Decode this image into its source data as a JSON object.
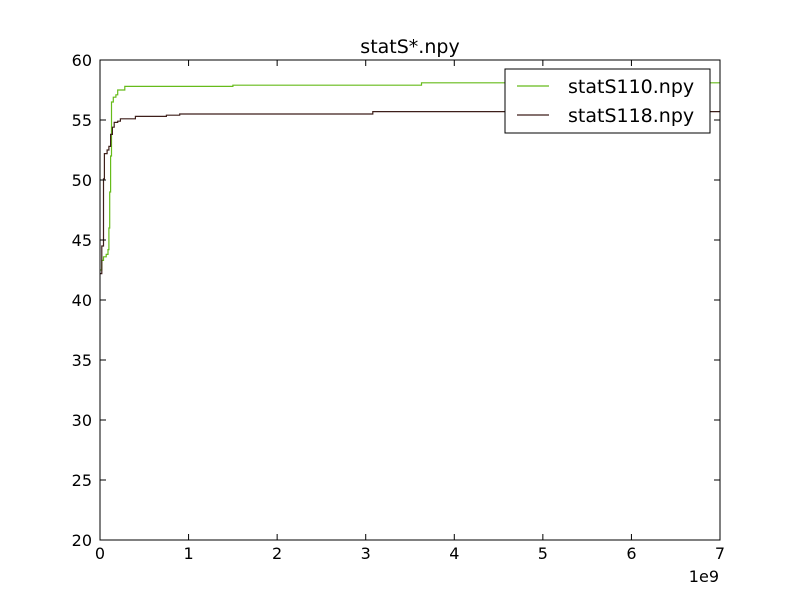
{
  "chart_data": {
    "type": "line",
    "title": "statS*.npy",
    "xlabel": "",
    "ylabel": "",
    "x_offset_label": "1e9",
    "xlim": [
      0,
      7
    ],
    "ylim": [
      20,
      60
    ],
    "xticks": [
      0,
      1,
      2,
      3,
      4,
      5,
      6,
      7
    ],
    "yticks": [
      20,
      25,
      30,
      35,
      40,
      45,
      50,
      55,
      60
    ],
    "grid": false,
    "legend_position": "top-right",
    "series": [
      {
        "name": "statS110.npy",
        "color": "#66bb1a",
        "step": true,
        "points": [
          [
            0.0,
            42.5
          ],
          [
            0.02,
            43.3
          ],
          [
            0.04,
            43.6
          ],
          [
            0.07,
            43.8
          ],
          [
            0.09,
            44.2
          ],
          [
            0.1,
            46.0
          ],
          [
            0.11,
            49.0
          ],
          [
            0.12,
            52.0
          ],
          [
            0.13,
            56.5
          ],
          [
            0.15,
            56.9
          ],
          [
            0.18,
            57.1
          ],
          [
            0.2,
            57.5
          ],
          [
            0.28,
            57.8
          ],
          [
            1.5,
            57.9
          ],
          [
            3.63,
            58.1
          ],
          [
            7.0,
            58.1
          ]
        ]
      },
      {
        "name": "statS118.npy",
        "color": "#3d1f1a",
        "step": true,
        "points": [
          [
            0.0,
            42.2
          ],
          [
            0.02,
            44.5
          ],
          [
            0.04,
            50.1
          ],
          [
            0.05,
            52.2
          ],
          [
            0.08,
            52.5
          ],
          [
            0.1,
            52.8
          ],
          [
            0.12,
            53.8
          ],
          [
            0.14,
            54.4
          ],
          [
            0.16,
            54.8
          ],
          [
            0.2,
            54.9
          ],
          [
            0.23,
            55.1
          ],
          [
            0.4,
            55.3
          ],
          [
            0.75,
            55.4
          ],
          [
            0.9,
            55.5
          ],
          [
            3.08,
            55.7
          ],
          [
            7.0,
            55.7
          ]
        ]
      }
    ]
  }
}
